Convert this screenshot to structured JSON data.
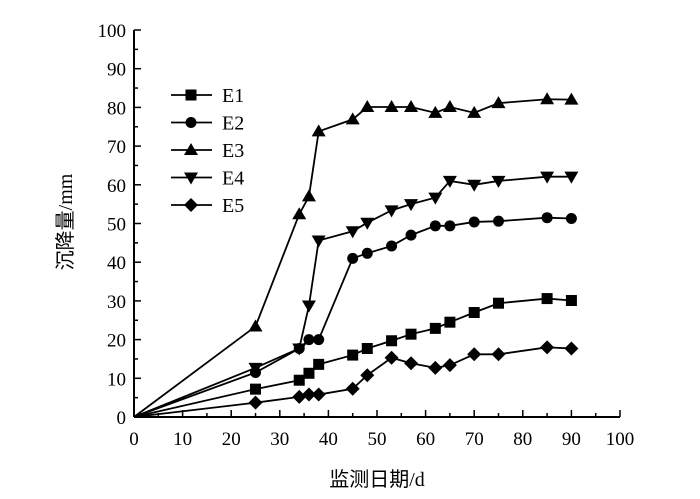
{
  "chart_data": {
    "type": "line",
    "title": "",
    "xlabel": "监测日期/d",
    "ylabel": "沉降量/mm",
    "xlim": [
      0,
      100
    ],
    "ylim": [
      0,
      100
    ],
    "xticks": [
      0,
      10,
      20,
      30,
      40,
      50,
      60,
      70,
      80,
      90,
      100
    ],
    "yticks": [
      0,
      10,
      20,
      30,
      40,
      50,
      60,
      70,
      80,
      90,
      100
    ],
    "grid": false,
    "legend_position": "top-left",
    "series": [
      {
        "name": "E1",
        "marker": "square",
        "x": [
          0,
          25,
          34,
          36,
          38,
          45,
          48,
          53,
          57,
          62,
          65,
          70,
          75,
          85,
          90
        ],
        "y": [
          0,
          7.2,
          9.5,
          11.3,
          13.6,
          16.0,
          17.7,
          19.7,
          21.4,
          22.9,
          24.5,
          27.0,
          29.4,
          30.6,
          30.1
        ]
      },
      {
        "name": "E2",
        "marker": "circle",
        "x": [
          0,
          25,
          34,
          36,
          38,
          45,
          48,
          53,
          57,
          62,
          65,
          70,
          75,
          85,
          90
        ],
        "y": [
          0,
          11.5,
          17.7,
          20.0,
          20.0,
          41.0,
          42.3,
          44.2,
          47.0,
          49.4,
          49.4,
          50.4,
          50.6,
          51.5,
          51.3
        ]
      },
      {
        "name": "E3",
        "marker": "triangle-up",
        "x": [
          0,
          25,
          34,
          36,
          38,
          45,
          48,
          53,
          57,
          62,
          65,
          70,
          75,
          85,
          90
        ],
        "y": [
          0,
          23.4,
          52.4,
          57.0,
          73.8,
          76.9,
          80.1,
          80.1,
          80.1,
          78.6,
          80.1,
          78.6,
          81.1,
          82.1,
          82.0
        ]
      },
      {
        "name": "E4",
        "marker": "triangle-down",
        "x": [
          0,
          25,
          34,
          36,
          38,
          45,
          48,
          53,
          57,
          62,
          65,
          70,
          75,
          85,
          90
        ],
        "y": [
          0,
          12.7,
          17.7,
          28.8,
          45.6,
          48.0,
          50.2,
          53.4,
          55.0,
          56.7,
          61.0,
          60.0,
          61.0,
          62.1,
          62.1
        ]
      },
      {
        "name": "E5",
        "marker": "diamond",
        "x": [
          0,
          25,
          34,
          36,
          38,
          45,
          48,
          53,
          57,
          62,
          65,
          70,
          75,
          85,
          90
        ],
        "y": [
          0,
          3.7,
          5.2,
          5.8,
          5.8,
          7.3,
          10.8,
          15.3,
          13.9,
          12.7,
          13.4,
          16.2,
          16.2,
          18.0,
          17.7
        ]
      }
    ]
  }
}
